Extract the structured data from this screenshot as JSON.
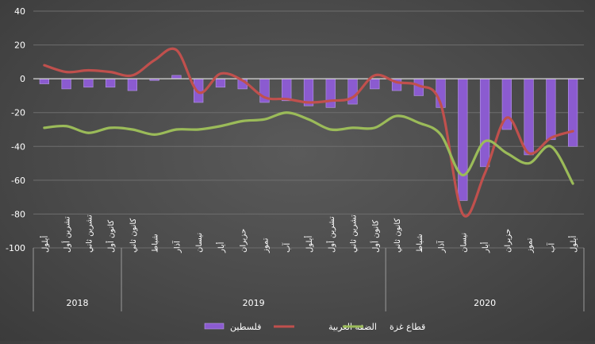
{
  "chart_data": {
    "type": "bar",
    "title": "",
    "xlabel": "",
    "ylabel": "",
    "ylim": [
      -100,
      40
    ],
    "yticks": [
      40,
      20,
      0,
      -20,
      -40,
      -60,
      -80,
      -100
    ],
    "grid": true,
    "legend_position": "bottom",
    "categories": [
      "أيلول",
      "تشرين أول",
      "تشرين ثاني",
      "كانون أول",
      "كانون ثاني",
      "شباط",
      "آذار",
      "نيسان",
      "أيار",
      "حزيران",
      "تموز",
      "آب",
      "أيلول",
      "تشرين أول",
      "تشرين ثاني",
      "كانون أول",
      "كانون ثاني",
      "شباط",
      "آذار",
      "نيسان",
      "أيار",
      "حزيران",
      "تموز",
      "آب",
      "أيلول"
    ],
    "year_groups": [
      {
        "label": "2018",
        "count": 4
      },
      {
        "label": "2019",
        "count": 12
      },
      {
        "label": "2020",
        "count": 9
      }
    ],
    "series": [
      {
        "name": "فلسطين",
        "kind": "bar",
        "color": "#8b5bd0",
        "values": [
          -3,
          -6,
          -5,
          -5,
          -7,
          -1,
          2,
          -14,
          -5,
          -6,
          -14,
          -13,
          -16,
          -17,
          -15,
          -6,
          -7,
          -10,
          -17,
          -72,
          -52,
          -30,
          -45,
          -36,
          -40
        ]
      },
      {
        "name": "الضفة الغربية",
        "kind": "line",
        "color": "#c0504d",
        "values": [
          8,
          4,
          5,
          4,
          2,
          11,
          17,
          -8,
          3,
          -1,
          -11,
          -12,
          -14,
          -13,
          -11,
          2,
          -2,
          -4,
          -15,
          -80,
          -56,
          -23,
          -44,
          -35,
          -31
        ]
      },
      {
        "name": "قطاع غزة",
        "kind": "line",
        "color": "#9bbb59",
        "values": [
          -29,
          -28,
          -32,
          -29,
          -30,
          -33,
          -30,
          -30,
          -28,
          -25,
          -24,
          -20,
          -24,
          -30,
          -29,
          -29,
          -22,
          -26,
          -33,
          -57,
          -37,
          -44,
          -50,
          -40,
          -62
        ]
      }
    ]
  }
}
